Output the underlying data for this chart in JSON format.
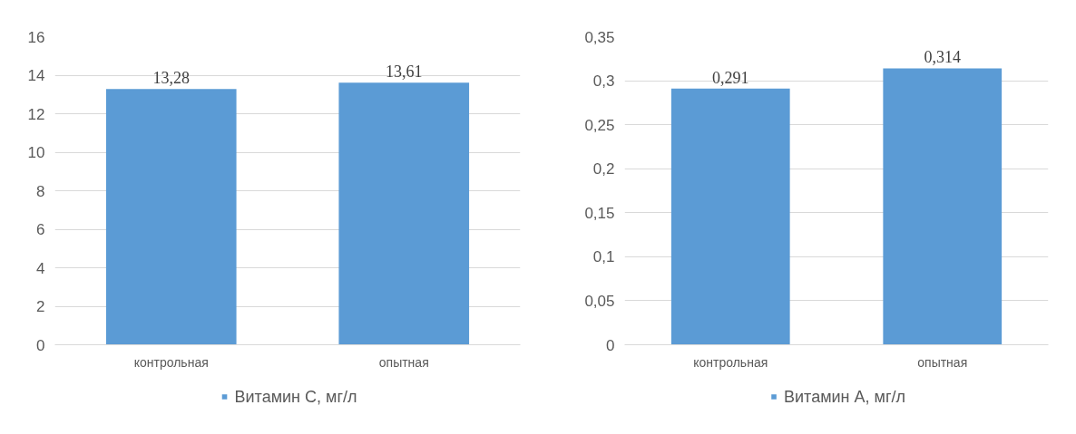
{
  "chart_data": [
    {
      "type": "bar",
      "categories": [
        "контрольная",
        "опытная"
      ],
      "series": [
        {
          "name": "Витамин C, мг/л",
          "color": "#5b9bd5",
          "values": [
            13.28,
            13.61
          ],
          "value_labels": [
            "13,28",
            "13,61"
          ]
        }
      ],
      "ylim": [
        0,
        16
      ],
      "yticks": [
        0,
        2,
        4,
        6,
        8,
        10,
        12,
        14,
        16
      ],
      "grid": "y",
      "legend": "bottom"
    },
    {
      "type": "bar",
      "categories": [
        "контрольная",
        "опытная"
      ],
      "series": [
        {
          "name": "Витамин A, мг/л",
          "color": "#5b9bd5",
          "values": [
            0.291,
            0.314
          ],
          "value_labels": [
            "0,291",
            "0,314"
          ]
        }
      ],
      "ylim": [
        0,
        0.35
      ],
      "yticks": [
        0,
        {
          "value": 0.05,
          "label": "0,05"
        },
        {
          "value": 0.1,
          "label": "0,1"
        },
        {
          "value": 0.15,
          "label": "0,15"
        },
        {
          "value": 0.2,
          "label": "0,2"
        },
        {
          "value": 0.25,
          "label": "0,25"
        },
        {
          "value": 0.3,
          "label": "0,3"
        },
        {
          "value": 0.35,
          "label": "0,35"
        }
      ],
      "grid": "y",
      "legend": "bottom"
    }
  ]
}
